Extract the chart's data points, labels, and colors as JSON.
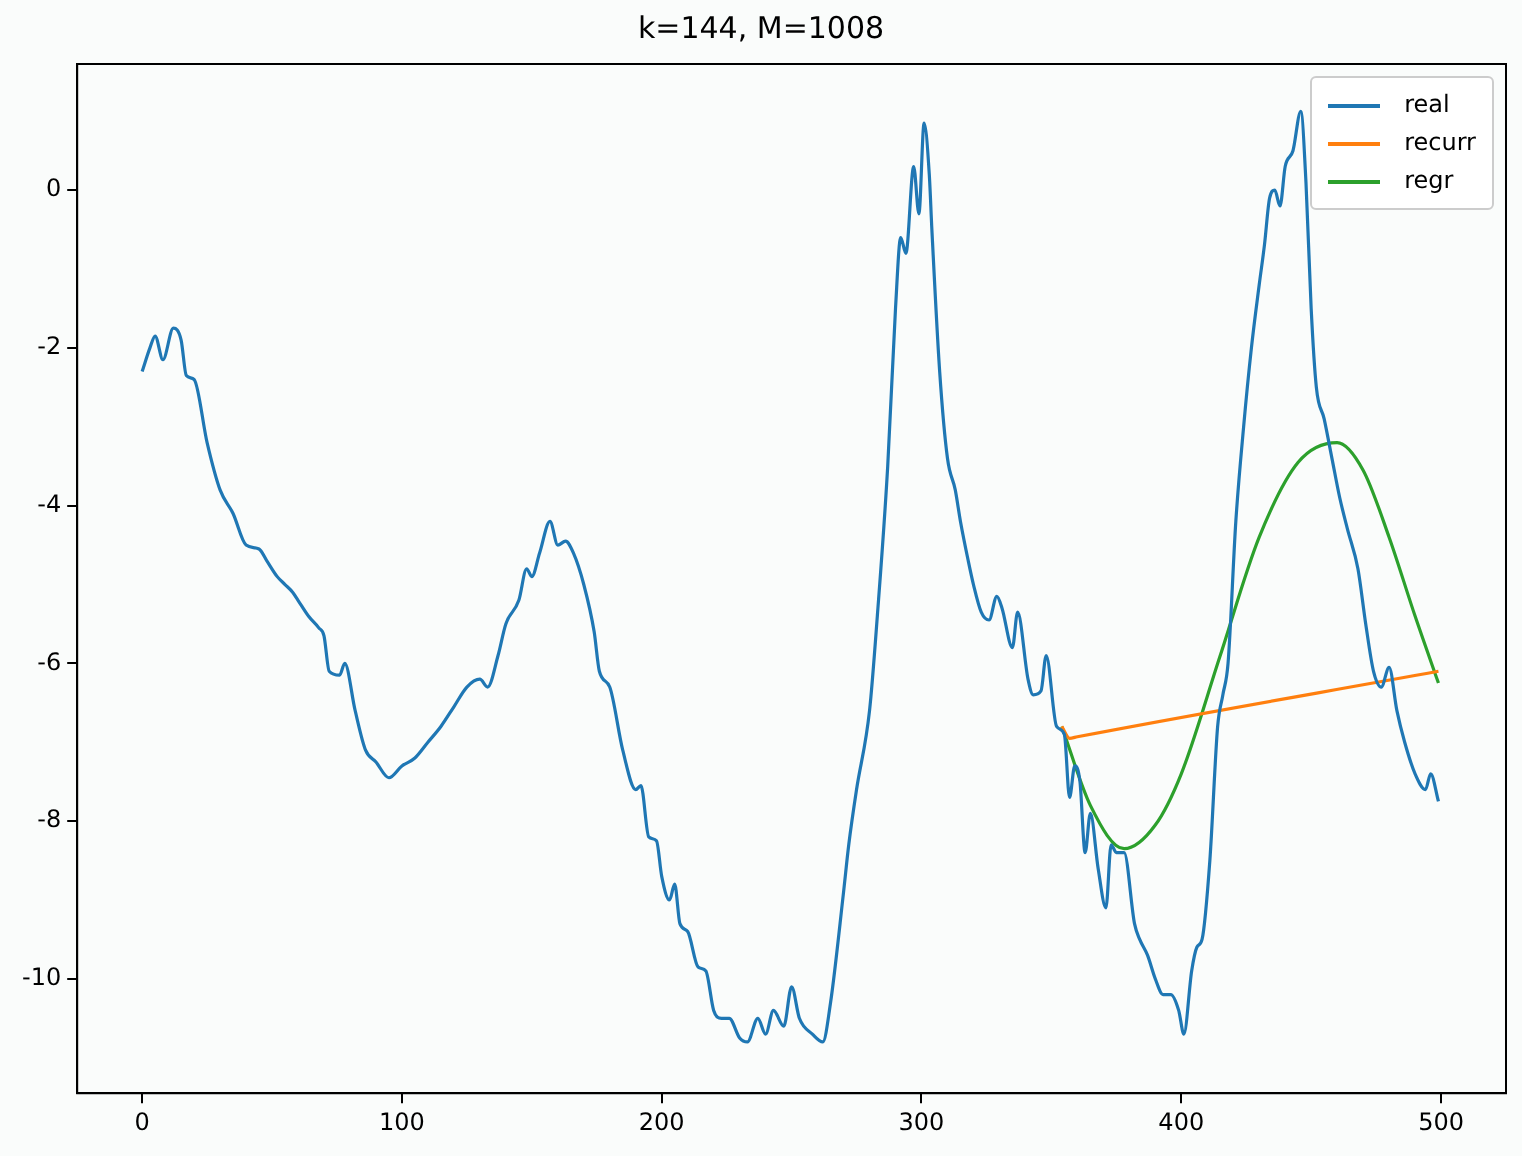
{
  "chart_data": {
    "type": "line",
    "title": "k=144, M=1008",
    "xlim": [
      -25,
      525
    ],
    "xticks": [
      0,
      100,
      200,
      300,
      400,
      500
    ],
    "ylim": [
      -11.45,
      1.6
    ],
    "yticks": [
      -10,
      -8,
      -6,
      -4,
      -2,
      0
    ],
    "grid": false,
    "legend": "top right",
    "marker": "none",
    "line_style": "solid",
    "series": [
      {
        "name": "real",
        "color": "#1f77b4",
        "x": [
          0,
          3,
          5,
          8,
          12,
          15,
          17,
          20,
          25,
          30,
          35,
          40,
          45,
          48,
          52,
          55,
          58,
          60,
          64,
          68,
          70,
          72,
          76,
          78,
          82,
          86,
          90,
          95,
          100,
          105,
          110,
          115,
          120,
          125,
          130,
          133,
          137,
          140,
          145,
          148,
          150,
          153,
          157,
          160,
          163,
          166,
          170,
          174,
          176,
          180,
          185,
          190,
          192,
          195,
          198,
          200,
          203,
          205,
          207,
          210,
          214,
          217,
          220,
          223,
          226,
          230,
          233,
          237,
          240,
          243,
          247,
          250,
          253,
          258,
          262,
          265,
          270,
          272,
          275,
          280,
          283,
          287,
          290,
          292,
          294,
          297,
          299,
          301,
          303,
          304,
          307,
          310,
          313,
          315,
          318,
          320,
          323,
          326,
          329,
          331,
          335,
          337,
          341,
          343,
          346,
          348,
          352,
          355,
          357,
          359,
          361,
          363,
          365,
          368,
          371,
          373,
          375,
          378,
          382,
          384,
          387,
          390,
          393,
          396,
          399,
          401,
          404,
          406,
          408,
          411,
          414,
          416,
          418,
          421,
          424,
          427,
          430,
          432,
          434,
          436,
          438,
          440,
          443,
          446,
          448,
          450,
          452,
          455,
          458,
          461,
          464,
          468,
          471,
          474,
          477,
          480,
          483,
          486,
          490,
          494,
          496,
          499
        ],
        "values": [
          -2.3,
          -2.0,
          -1.85,
          -2.15,
          -1.75,
          -1.9,
          -2.35,
          -2.4,
          -3.2,
          -3.8,
          -4.1,
          -4.5,
          -4.55,
          -4.7,
          -4.9,
          -5.0,
          -5.1,
          -5.2,
          -5.4,
          -5.55,
          -5.65,
          -6.1,
          -6.15,
          -6.0,
          -6.6,
          -7.1,
          -7.25,
          -7.45,
          -7.3,
          -7.2,
          -7.0,
          -6.8,
          -6.55,
          -6.3,
          -6.2,
          -6.3,
          -5.9,
          -5.5,
          -5.2,
          -4.8,
          -4.9,
          -4.6,
          -4.2,
          -4.5,
          -4.45,
          -4.6,
          -5.0,
          -5.6,
          -6.1,
          -6.3,
          -7.1,
          -7.6,
          -7.55,
          -8.2,
          -8.25,
          -8.7,
          -9.0,
          -8.8,
          -9.3,
          -9.4,
          -9.85,
          -9.9,
          -10.4,
          -10.5,
          -10.5,
          -10.75,
          -10.8,
          -10.5,
          -10.7,
          -10.4,
          -10.6,
          -10.1,
          -10.5,
          -10.7,
          -10.8,
          -10.3,
          -8.9,
          -8.3,
          -7.6,
          -6.6,
          -5.4,
          -3.5,
          -1.5,
          -0.6,
          -0.8,
          0.3,
          -0.3,
          0.85,
          0.2,
          -0.5,
          -2.3,
          -3.4,
          -3.8,
          -4.2,
          -4.7,
          -5.0,
          -5.35,
          -5.45,
          -5.15,
          -5.3,
          -5.8,
          -5.35,
          -6.2,
          -6.4,
          -6.35,
          -5.9,
          -6.8,
          -6.9,
          -7.7,
          -7.3,
          -7.5,
          -8.4,
          -7.9,
          -8.6,
          -9.1,
          -8.3,
          -8.4,
          -8.4,
          -9.3,
          -9.5,
          -9.7,
          -10.0,
          -10.2,
          -10.2,
          -10.4,
          -10.7,
          -9.9,
          -9.6,
          -9.5,
          -8.5,
          -6.8,
          -6.4,
          -6.0,
          -4.2,
          -3.0,
          -2.0,
          -1.2,
          -0.7,
          -0.1,
          0.0,
          -0.2,
          0.3,
          0.5,
          1.0,
          0.1,
          -1.5,
          -2.5,
          -2.9,
          -3.4,
          -3.9,
          -4.3,
          -4.8,
          -5.5,
          -6.1,
          -6.3,
          -6.05,
          -6.6,
          -7.0,
          -7.4,
          -7.6,
          -7.4,
          -7.75
        ]
      },
      {
        "name": "recurr",
        "color": "#ff7f0e",
        "x": [
          354,
          357,
          360,
          499
        ],
        "values": [
          -6.8,
          -6.95,
          -6.93,
          -6.1
        ]
      },
      {
        "name": "regr",
        "color": "#2ca02c",
        "x": [
          354,
          365,
          378,
          390,
          400,
          415,
          430,
          445,
          460,
          470,
          480,
          490,
          499
        ],
        "values": [
          -6.8,
          -7.8,
          -8.35,
          -8.05,
          -7.4,
          -5.9,
          -4.4,
          -3.45,
          -3.2,
          -3.55,
          -4.4,
          -5.4,
          -6.25
        ]
      }
    ]
  }
}
